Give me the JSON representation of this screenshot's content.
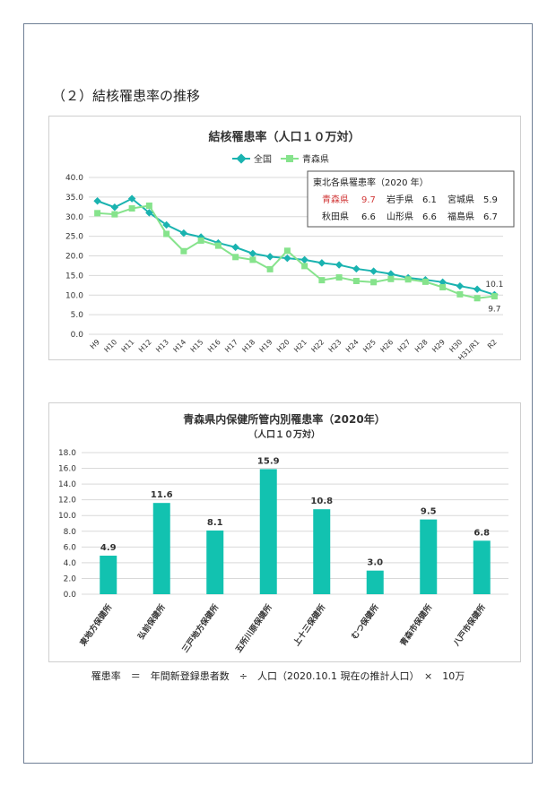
{
  "section_heading": "（２）結核罹患率の推移",
  "formula": "罹患率　＝　年間新登録患者数　÷　人口（2020.10.1 現在の推計人口）　×　10万",
  "colors": {
    "zenkoku": "#1ab3b0",
    "aomori": "#86e38c",
    "bar": "#12c2b0",
    "highlight": "#d23b3b",
    "frame": "#6f7f95"
  },
  "chart_data": [
    {
      "type": "line",
      "title": "結核罹患率（人口１０万対）",
      "x": [
        "H9",
        "H10",
        "H11",
        "H12",
        "H13",
        "H14",
        "H15",
        "H16",
        "H17",
        "H18",
        "H19",
        "H20",
        "H21",
        "H22",
        "H23",
        "H24",
        "H25",
        "H26",
        "H27",
        "H28",
        "H29",
        "H30",
        "H31/R1",
        "R2"
      ],
      "series": [
        {
          "name": "全国",
          "values": [
            34.0,
            32.4,
            34.6,
            31.0,
            27.9,
            25.8,
            24.8,
            23.3,
            22.2,
            20.6,
            19.8,
            19.4,
            19.0,
            18.2,
            17.7,
            16.7,
            16.1,
            15.4,
            14.4,
            13.9,
            13.3,
            12.3,
            11.5,
            10.1
          ]
        },
        {
          "name": "青森県",
          "values": [
            30.9,
            30.6,
            32.1,
            32.8,
            25.6,
            21.2,
            23.9,
            22.6,
            19.7,
            19.0,
            16.6,
            21.3,
            17.4,
            13.8,
            14.5,
            13.6,
            13.3,
            14.1,
            14.0,
            13.4,
            12.0,
            10.2,
            9.2,
            9.7
          ]
        }
      ],
      "ylim": [
        0,
        40
      ],
      "yticks": [
        "0.0",
        "5.0",
        "10.0",
        "15.0",
        "20.0",
        "25.0",
        "30.0",
        "35.0",
        "40.0"
      ],
      "end_labels": {
        "zenkoku": "10.1",
        "aomori": "9.7"
      },
      "legend": "top-center",
      "grid": true,
      "inset": {
        "title": "東北各県罹患率（2020 年）",
        "row1": [
          {
            "pref": "青森県",
            "value": "9.7",
            "highlight": true
          },
          {
            "pref": "岩手県",
            "value": "6.1"
          },
          {
            "pref": "宮城県",
            "value": "5.9"
          }
        ],
        "row2": [
          {
            "pref": "秋田県",
            "value": "6.6"
          },
          {
            "pref": "山形県",
            "value": "6.6"
          },
          {
            "pref": "福島県",
            "value": "6.7"
          }
        ]
      }
    },
    {
      "type": "bar",
      "title": "青森県内保健所管内別罹患率（2020年）",
      "subtitle": "（人口１０万対）",
      "categories": [
        "東地方保健所",
        "弘前保健所",
        "三戸地方保健所",
        "五所川原保健所",
        "上十三保健所",
        "むつ保健所",
        "青森市保健所",
        "八戸市保健所"
      ],
      "values": [
        4.9,
        11.6,
        8.1,
        15.9,
        10.8,
        3.0,
        9.5,
        6.8
      ],
      "value_labels": [
        "4.9",
        "11.6",
        "8.1",
        "15.9",
        "10.8",
        "3.0",
        "9.5",
        "6.8"
      ],
      "ylim": [
        0,
        18
      ],
      "yticks": [
        "0.0",
        "2.0",
        "4.0",
        "6.0",
        "8.0",
        "10.0",
        "12.0",
        "14.0",
        "16.0",
        "18.0"
      ],
      "grid": true
    }
  ]
}
